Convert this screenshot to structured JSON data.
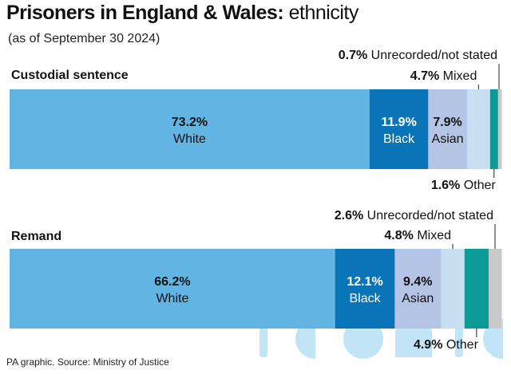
{
  "title": {
    "bold": "Prisoners in England & Wales:",
    "light": "ethnicity"
  },
  "subtitle": "(as of September 30 2024)",
  "footer": "PA graphic. Source: Ministry of Justice",
  "colors": {
    "White": "#62b5e3",
    "Black": "#0a74b8",
    "Asian": "#b4c4e4",
    "Mixed": "#c8dff1",
    "Other": "#0b9a95",
    "Unrecorded/not stated": "#c9c9c9"
  },
  "chart_data": {
    "type": "stacked-bar",
    "title": "Prisoners in England & Wales: ethnicity",
    "unit": "%",
    "categories": [
      "White",
      "Black",
      "Asian",
      "Mixed",
      "Other",
      "Unrecorded/not stated"
    ],
    "series": [
      {
        "name": "Custodial sentence",
        "values": [
          73.2,
          11.9,
          7.9,
          4.7,
          1.6,
          0.7
        ],
        "labels": [
          "73.2%",
          "11.9%",
          "7.9%",
          "4.7%",
          "1.6%",
          "0.7%"
        ]
      },
      {
        "name": "Remand",
        "values": [
          66.2,
          12.1,
          9.4,
          4.8,
          4.9,
          2.6
        ],
        "labels": [
          "66.2%",
          "12.1%",
          "9.4%",
          "4.8%",
          "4.9%",
          "2.6%"
        ]
      }
    ]
  }
}
